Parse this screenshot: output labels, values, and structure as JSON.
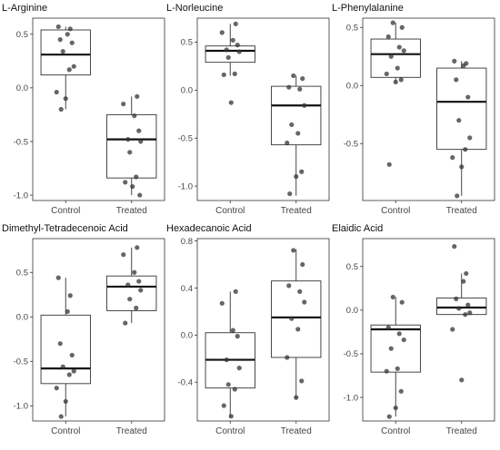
{
  "chart_data": [
    {
      "type": "box",
      "title": "L-Arginine",
      "categories": [
        "Control",
        "Treated"
      ],
      "yticks": [
        0.5,
        0.0,
        -0.5,
        -1.0
      ],
      "ytick_labels": [
        "0.5",
        "0.0",
        "-0.5",
        "-1.0"
      ],
      "ylim": [
        -1.05,
        0.65
      ],
      "boxes": [
        {
          "min": -0.2,
          "q1": 0.12,
          "median": 0.31,
          "q3": 0.54,
          "max": 0.57
        },
        {
          "min": -1.0,
          "q1": -0.84,
          "median": -0.48,
          "q3": -0.25,
          "max": -0.08
        }
      ],
      "points": [
        [
          0.57,
          0.55,
          0.5,
          0.45,
          0.42,
          0.34,
          0.2,
          0.17,
          -0.04,
          -0.1,
          -0.2
        ],
        [
          -0.08,
          -0.15,
          -0.26,
          -0.4,
          -0.48,
          -0.5,
          -0.6,
          -0.83,
          -0.88,
          -0.92,
          -1.0
        ]
      ]
    },
    {
      "type": "box",
      "title": "L-Norleucine",
      "categories": [
        "Control",
        "Treated"
      ],
      "yticks": [
        0.5,
        0.0,
        -0.5,
        -1.0
      ],
      "ytick_labels": [
        "0.5",
        "0.0",
        "-0.5",
        "-1.0"
      ],
      "ylim": [
        -1.15,
        0.75
      ],
      "boxes": [
        {
          "min": 0.15,
          "q1": 0.29,
          "median": 0.41,
          "q3": 0.46,
          "max": 0.69
        },
        {
          "min": -1.1,
          "q1": -0.57,
          "median": -0.16,
          "q3": 0.04,
          "max": 0.15
        }
      ],
      "points": [
        [
          0.69,
          0.6,
          0.52,
          0.47,
          0.42,
          0.4,
          0.34,
          0.17,
          0.16,
          -0.13
        ],
        [
          0.15,
          0.12,
          0.03,
          0.01,
          -0.16,
          -0.36,
          -0.45,
          -0.55,
          -0.85,
          -0.9,
          -1.08
        ]
      ]
    },
    {
      "type": "box",
      "title": "L-Phenylalanine",
      "categories": [
        "Control",
        "Treated"
      ],
      "yticks": [
        0.5,
        0.0,
        -0.5
      ],
      "ytick_labels": [
        "0.5",
        "0.0",
        "-0.5"
      ],
      "ylim": [
        -0.99,
        0.58
      ],
      "boxes": [
        {
          "min": 0.03,
          "q1": 0.07,
          "median": 0.27,
          "q3": 0.4,
          "max": 0.54
        },
        {
          "min": -0.95,
          "q1": -0.55,
          "median": -0.14,
          "q3": 0.15,
          "max": 0.21
        }
      ],
      "points": [
        [
          0.54,
          0.5,
          0.42,
          0.33,
          0.3,
          0.25,
          0.15,
          0.1,
          0.05,
          0.03,
          -0.68
        ],
        [
          0.21,
          0.19,
          0.17,
          0.05,
          -0.1,
          -0.3,
          -0.45,
          -0.55,
          -0.62,
          -0.7,
          -0.95
        ]
      ]
    },
    {
      "type": "box",
      "title": "Dimethyl-Tetradecenoic Acid",
      "categories": [
        "Control",
        "Treated"
      ],
      "yticks": [
        0.5,
        0.0,
        -0.5,
        -1.0
      ],
      "ytick_labels": [
        "0.5",
        "0.0",
        "-0.5",
        "-1.0"
      ],
      "ylim": [
        -1.17,
        0.88
      ],
      "boxes": [
        {
          "min": -1.12,
          "q1": -0.75,
          "median": -0.58,
          "q3": 0.02,
          "max": 0.44
        },
        {
          "min": -0.07,
          "q1": 0.07,
          "median": 0.34,
          "q3": 0.46,
          "max": 0.78
        }
      ],
      "points": [
        [
          0.44,
          0.24,
          0.06,
          -0.3,
          -0.43,
          -0.56,
          -0.61,
          -0.65,
          -0.8,
          -0.95,
          -1.12
        ],
        [
          0.78,
          0.7,
          0.5,
          0.4,
          0.36,
          0.3,
          0.2,
          0.1,
          -0.07
        ]
      ]
    },
    {
      "type": "box",
      "title": "Hexadecanoic Acid",
      "categories": [
        "Control",
        "Treated"
      ],
      "yticks": [
        0.8,
        0.4,
        0.0,
        -0.4
      ],
      "ytick_labels": [
        "0.8",
        "0.4",
        "0.0",
        "-0.4"
      ],
      "ylim": [
        -0.73,
        0.82
      ],
      "boxes": [
        {
          "min": -0.7,
          "q1": -0.45,
          "median": -0.21,
          "q3": 0.02,
          "max": 0.37
        },
        {
          "min": -0.55,
          "q1": -0.19,
          "median": 0.15,
          "q3": 0.46,
          "max": 0.73
        }
      ],
      "points": [
        [
          0.37,
          0.27,
          0.04,
          -0.01,
          -0.21,
          -0.28,
          -0.42,
          -0.46,
          -0.6,
          -0.69
        ],
        [
          0.72,
          0.6,
          0.42,
          0.37,
          0.28,
          0.14,
          0.05,
          -0.19,
          -0.39,
          -0.53
        ]
      ]
    },
    {
      "type": "box",
      "title": "Elaidic Acid",
      "categories": [
        "Control",
        "Treated"
      ],
      "yticks": [
        0.5,
        0.0,
        -0.5,
        -1.0
      ],
      "ytick_labels": [
        "0.5",
        "0.0",
        "-0.5",
        "-1.0"
      ],
      "ylim": [
        -1.27,
        0.82
      ],
      "boxes": [
        {
          "min": -1.22,
          "q1": -0.71,
          "median": -0.22,
          "q3": -0.17,
          "max": 0.15
        },
        {
          "min": -0.05,
          "q1": -0.05,
          "median": 0.03,
          "q3": 0.14,
          "max": 0.42
        }
      ],
      "points": [
        [
          0.15,
          0.09,
          -0.2,
          -0.27,
          -0.34,
          -0.44,
          -0.67,
          -0.7,
          -0.93,
          -1.12,
          -1.22
        ],
        [
          0.73,
          0.42,
          0.33,
          0.13,
          0.06,
          0.02,
          -0.03,
          -0.05,
          -0.22,
          -0.8
        ]
      ]
    }
  ]
}
